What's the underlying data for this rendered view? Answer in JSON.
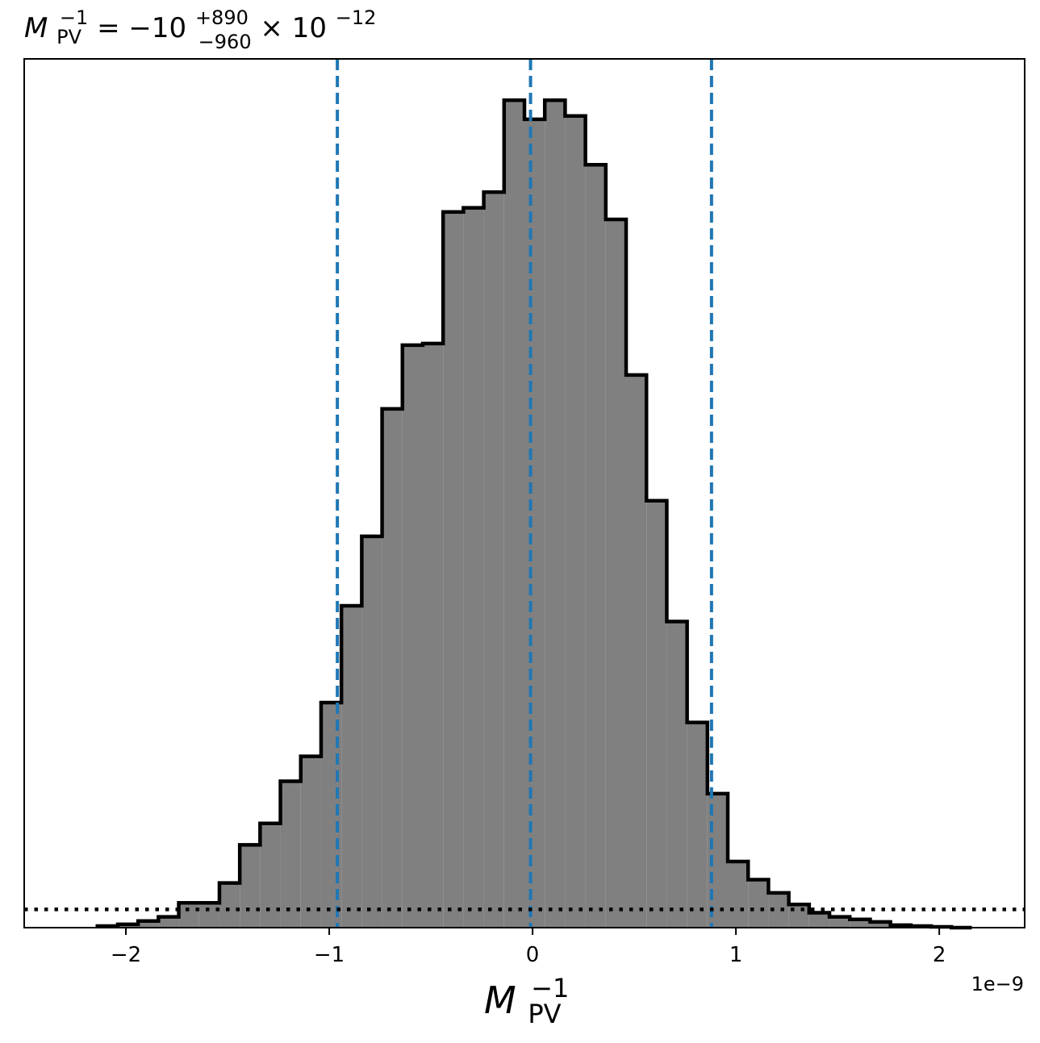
{
  "chart_data": {
    "type": "histogram",
    "title": {
      "base": "M",
      "sub": "PV",
      "sup": "−1",
      "equals": " = ",
      "value": "−10",
      "upper_err": "+890",
      "lower_err": "−960",
      "times": " × ",
      "exp_base": "10",
      "exp": "−12"
    },
    "xlabel": {
      "base": "M",
      "sub": "PV",
      "sup": "−1"
    },
    "x_offset_label": "1e−9",
    "x_unit_scale": 1e-09,
    "xlim": [
      -2.5,
      2.42
    ],
    "ylim": [
      0,
      1.05
    ],
    "x_ticks": [
      -2,
      -1,
      0,
      1,
      2
    ],
    "x_tick_labels": [
      "−2",
      "−1",
      "0",
      "1",
      "2"
    ],
    "y_ticks_visible": false,
    "bin_edges": [
      -2.14,
      -2.04,
      -1.94,
      -1.84,
      -1.74,
      -1.64,
      -1.54,
      -1.44,
      -1.34,
      -1.24,
      -1.14,
      -1.04,
      -0.94,
      -0.84,
      -0.74,
      -0.64,
      -0.54,
      -0.44,
      -0.34,
      -0.24,
      -0.14,
      -0.04,
      0.06,
      0.16,
      0.26,
      0.36,
      0.46,
      0.56,
      0.66,
      0.76,
      0.86,
      0.96,
      1.06,
      1.16,
      1.26,
      1.36,
      1.46,
      1.56,
      1.66,
      1.76,
      1.86,
      1.96,
      2.06,
      2.16
    ],
    "counts": [
      0.002,
      0.004,
      0.008,
      0.013,
      0.03,
      0.03,
      0.054,
      0.1,
      0.126,
      0.177,
      0.207,
      0.272,
      0.389,
      0.473,
      0.627,
      0.704,
      0.706,
      0.865,
      0.87,
      0.889,
      1.0,
      0.977,
      1.0,
      0.981,
      0.922,
      0.856,
      0.668,
      0.516,
      0.37,
      0.248,
      0.162,
      0.08,
      0.058,
      0.042,
      0.028,
      0.018,
      0.013,
      0.01,
      0.007,
      0.003,
      0.002,
      0.001,
      0.0
    ],
    "counts_scale_note": "",
    "vlines": [
      -0.96,
      -0.01,
      0.88
    ],
    "hline_dotted": 0.022,
    "colors": {
      "fill": "#808080",
      "edge": "#000000",
      "vline": "#1f77b4",
      "hline": "#000000"
    }
  }
}
